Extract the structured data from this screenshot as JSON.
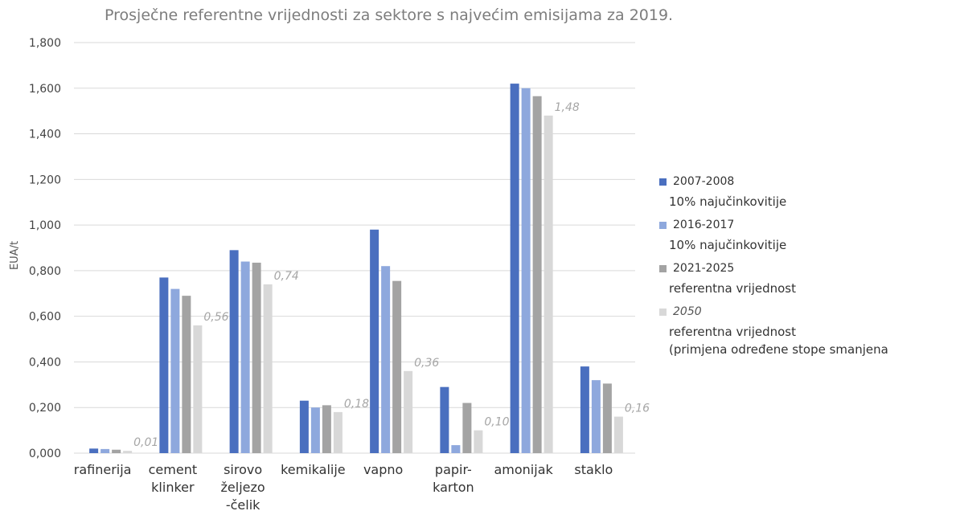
{
  "chart_data": {
    "type": "bar",
    "title": "Prosječne referentne vrijednosti za sektore s najvećim emisijama za 2019.",
    "ylabel": "EUA/t",
    "xlabel": "",
    "ylim": [
      0,
      1.8
    ],
    "yticks": [
      "0,000",
      "0,200",
      "0,400",
      "0,600",
      "0,800",
      "1,000",
      "1,200",
      "1,400",
      "1,600",
      "1,800"
    ],
    "categories": [
      [
        "rafinerija"
      ],
      [
        "cement",
        "klinker"
      ],
      [
        "sirovo",
        "željezo",
        "-čelik"
      ],
      [
        "kemikalije"
      ],
      [
        "vapno"
      ],
      [
        "papir-",
        "karton"
      ],
      [
        "amonijak"
      ],
      [
        "staklo"
      ]
    ],
    "series": [
      {
        "name": "2007-2008",
        "sub": "10% najučinkovitije",
        "color": "#4a6fbf",
        "values": [
          0.02,
          0.77,
          0.89,
          0.23,
          0.98,
          0.29,
          1.62,
          0.38
        ]
      },
      {
        "name": "2016-2017",
        "sub": "10% najučinkovitije",
        "color": "#8ea8dd",
        "values": [
          0.018,
          0.72,
          0.84,
          0.2,
          0.82,
          0.035,
          1.6,
          0.32
        ]
      },
      {
        "name": "2021-2025",
        "sub": "referentna vrijednost",
        "color": "#a3a3a3",
        "values": [
          0.015,
          0.69,
          0.835,
          0.21,
          0.755,
          0.22,
          1.565,
          0.305
        ]
      },
      {
        "name": "2050",
        "sub": "referentna vrijednost\n(primjena određene stope smanjena",
        "color": "#d8d8d8",
        "italic": true,
        "values": [
          0.01,
          0.56,
          0.74,
          0.18,
          0.36,
          0.1,
          1.48,
          0.16
        ]
      }
    ],
    "data_labels": [
      "0,01",
      "0,56",
      "0,74",
      "0,18",
      "0,36",
      "0,10",
      "1,48",
      "0,16"
    ],
    "grid": true,
    "legend": "right"
  }
}
